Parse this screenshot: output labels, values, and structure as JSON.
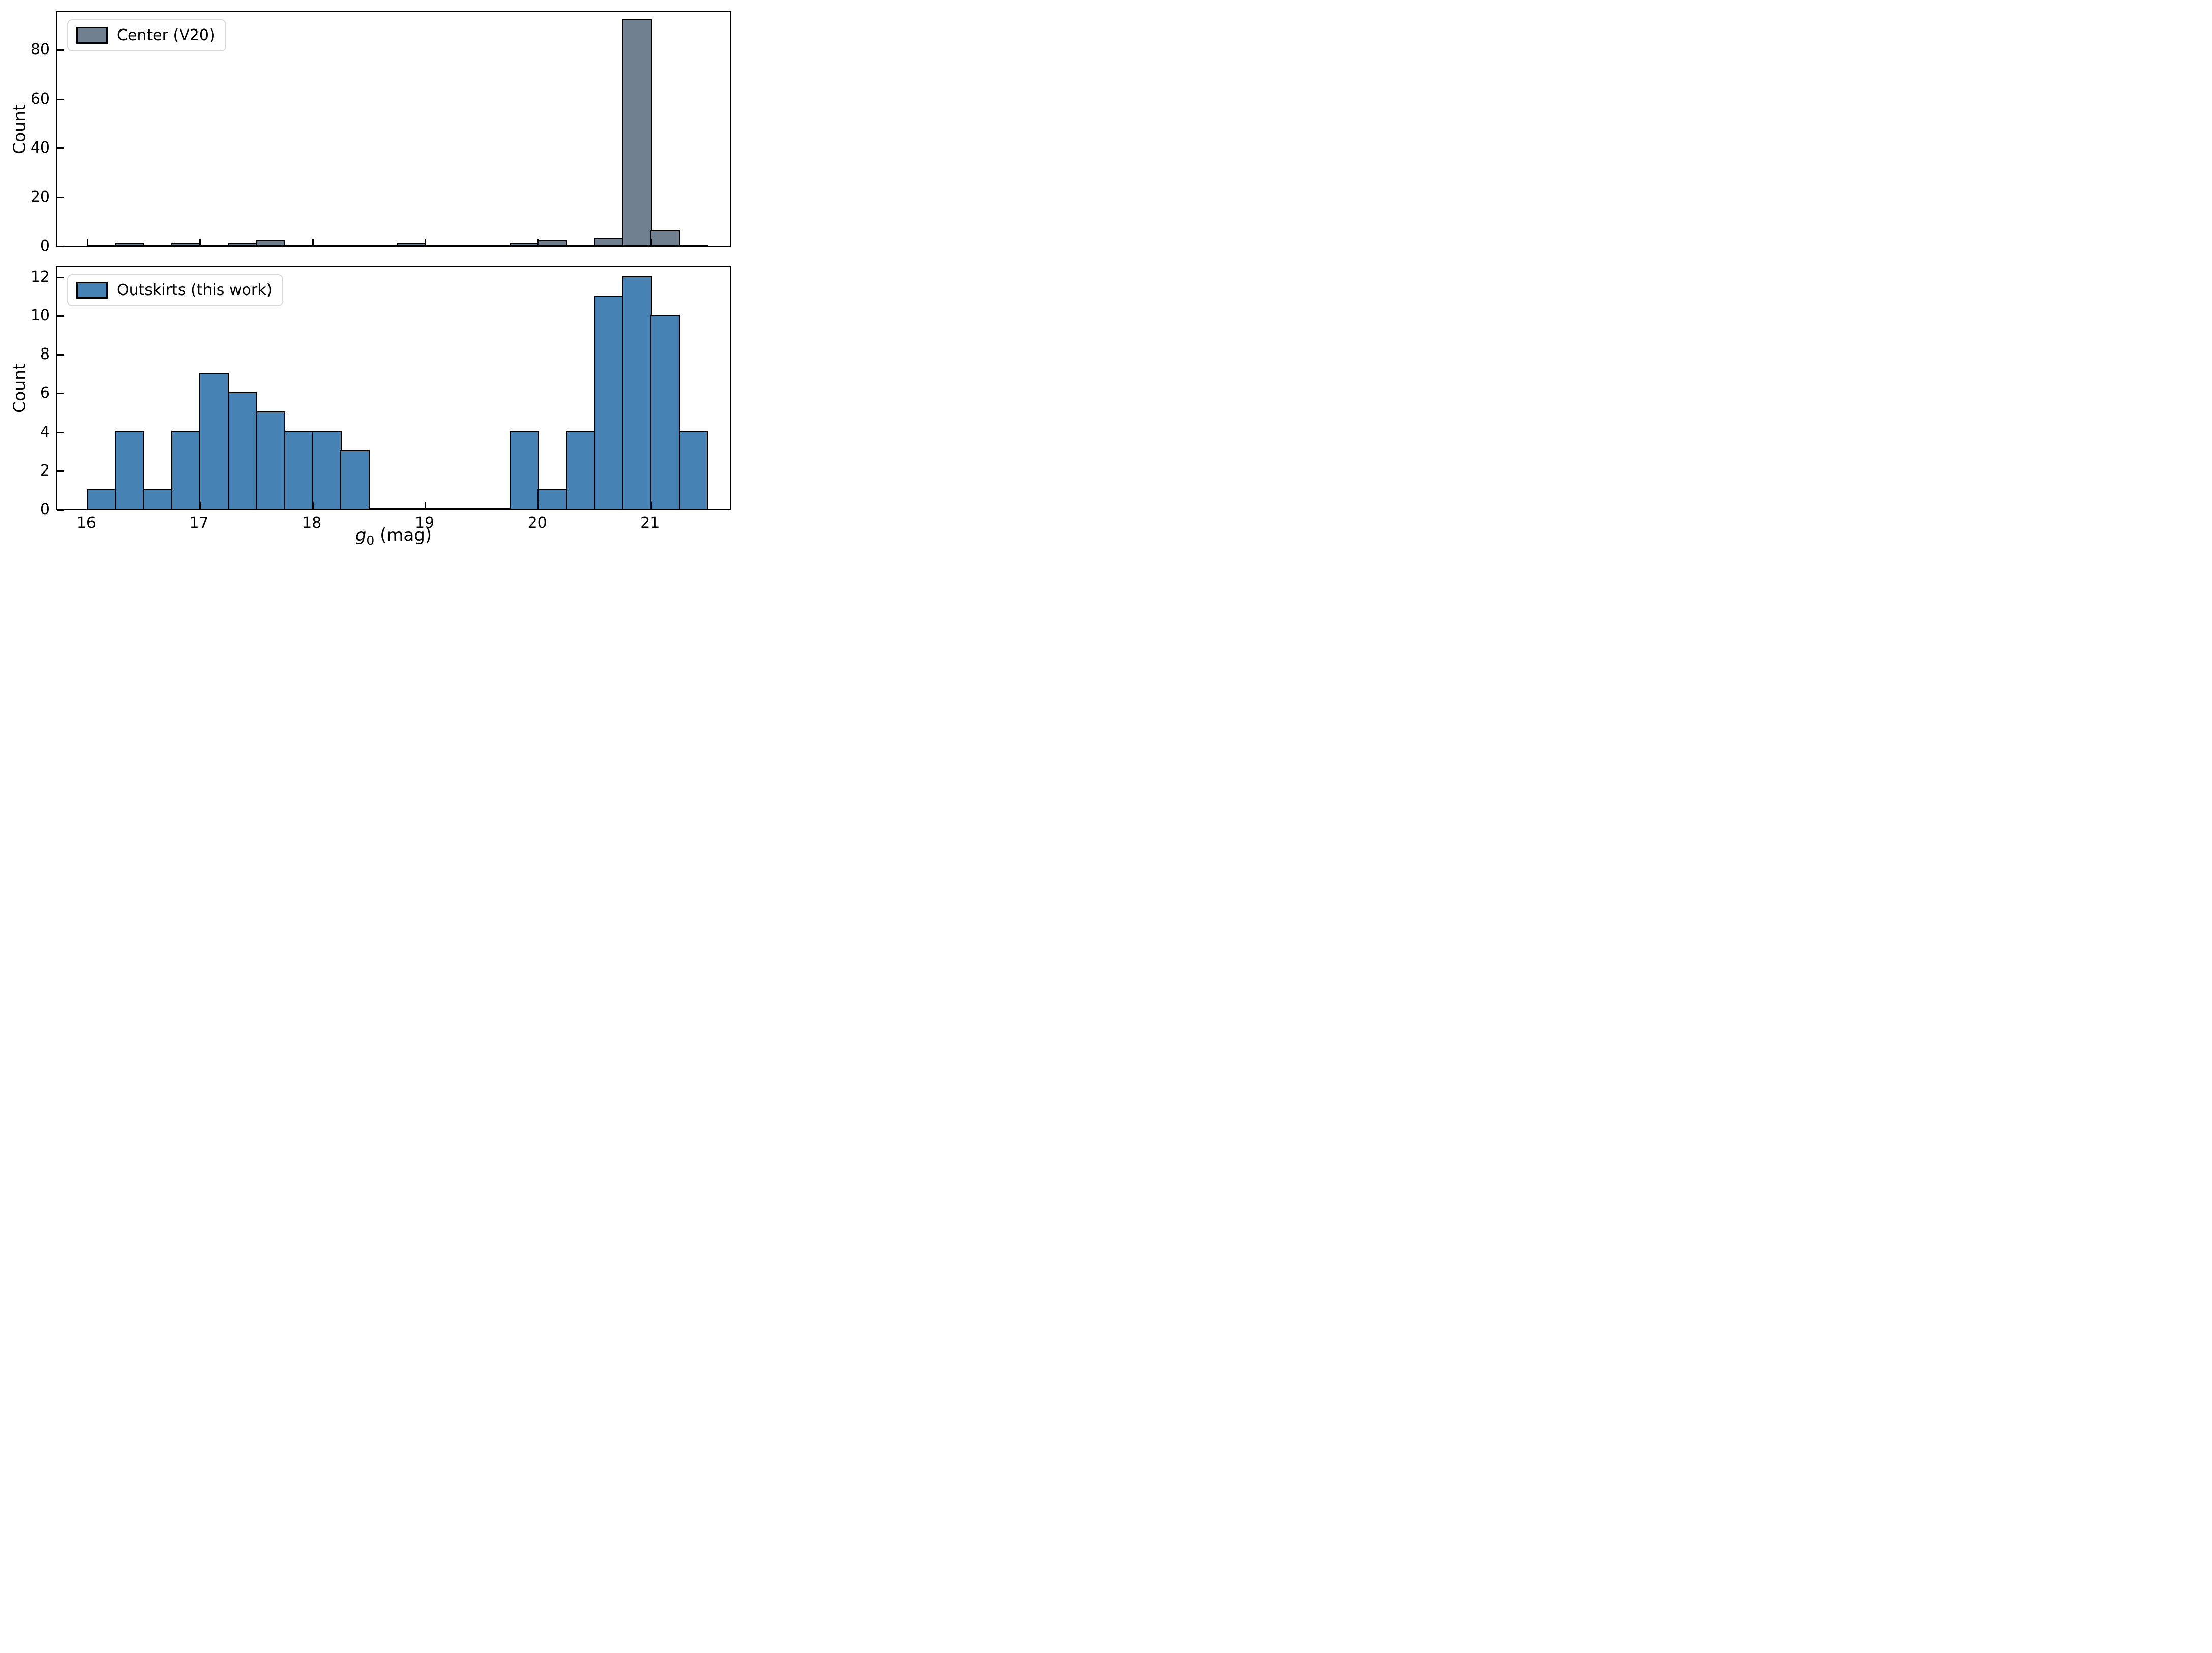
{
  "figure": {
    "background": "#ffffff",
    "text_color": "#000000"
  },
  "xlabel": {
    "variable": "g",
    "subscript": "0",
    "unit": " (mag)"
  },
  "chart_data": [
    {
      "type": "bar",
      "subtype": "histogram",
      "panel": "top",
      "legend": {
        "label": "Center (V20)",
        "position": "top-left"
      },
      "series": [
        {
          "name": "Center (V20)",
          "fill": "#708090",
          "edge": "#000000"
        }
      ],
      "bins": {
        "start": 16.0,
        "width": 0.25,
        "end": 21.5,
        "counts": [
          0,
          1,
          0,
          1,
          0,
          1,
          2,
          0,
          0,
          0,
          0,
          1,
          0,
          0,
          0,
          1,
          2,
          0,
          3,
          92,
          6,
          0
        ]
      },
      "ylabel": "Count",
      "xlim": [
        15.73,
        21.72
      ],
      "ylim": [
        0,
        96
      ],
      "xticks": [
        16,
        17,
        18,
        19,
        20,
        21
      ],
      "show_xtick_labels": false,
      "yticks": [
        0,
        20,
        40,
        60,
        80
      ],
      "grid": false
    },
    {
      "type": "bar",
      "subtype": "histogram",
      "panel": "bottom",
      "legend": {
        "label": "Outskirts (this work)",
        "position": "top-left"
      },
      "series": [
        {
          "name": "Outskirts (this work)",
          "fill": "#4682B4",
          "edge": "#000000"
        }
      ],
      "bins": {
        "start": 16.0,
        "width": 0.25,
        "end": 21.5,
        "counts": [
          1,
          4,
          1,
          4,
          7,
          6,
          5,
          4,
          4,
          3,
          0,
          0,
          0,
          0,
          0,
          4,
          1,
          4,
          11,
          12,
          10,
          4
        ]
      },
      "ylabel": "Count",
      "xlim": [
        15.73,
        21.72
      ],
      "ylim": [
        0,
        12.6
      ],
      "xticks": [
        16,
        17,
        18,
        19,
        20,
        21
      ],
      "show_xtick_labels": true,
      "yticks": [
        0,
        2,
        4,
        6,
        8,
        10,
        12
      ],
      "grid": false
    }
  ]
}
